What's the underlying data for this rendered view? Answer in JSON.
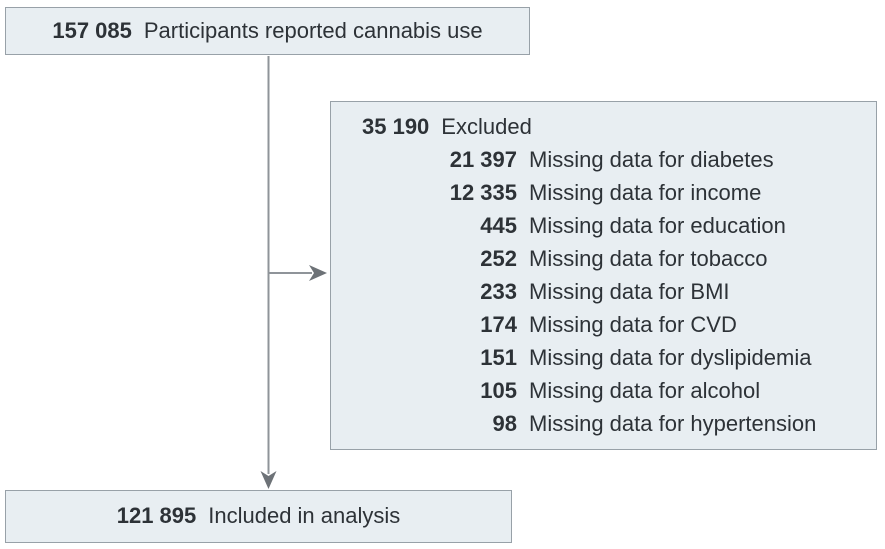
{
  "colors": {
    "box_fill": "#e8eef2",
    "box_border": "#98a1a8",
    "text": "#2d3237",
    "arrow_line": "#8f9499",
    "arrow_head": "#6d7277"
  },
  "top_box": {
    "number": "157 085",
    "label": "Participants reported cannabis use"
  },
  "excluded_box": {
    "number": "35 190",
    "label": "Excluded",
    "items": [
      {
        "number": "21 397",
        "label": "Missing data for diabetes"
      },
      {
        "number": "12 335",
        "label": "Missing data for income"
      },
      {
        "number": "445",
        "label": "Missing data for education"
      },
      {
        "number": "252",
        "label": "Missing data for tobacco"
      },
      {
        "number": "233",
        "label": "Missing data for BMI"
      },
      {
        "number": "174",
        "label": "Missing data for CVD"
      },
      {
        "number": "151",
        "label": "Missing data for dyslipidemia"
      },
      {
        "number": "105",
        "label": "Missing data for alcohol"
      },
      {
        "number": "98",
        "label": "Missing data for hypertension"
      }
    ]
  },
  "included_box": {
    "number": "121 895",
    "label": "Included in analysis"
  }
}
